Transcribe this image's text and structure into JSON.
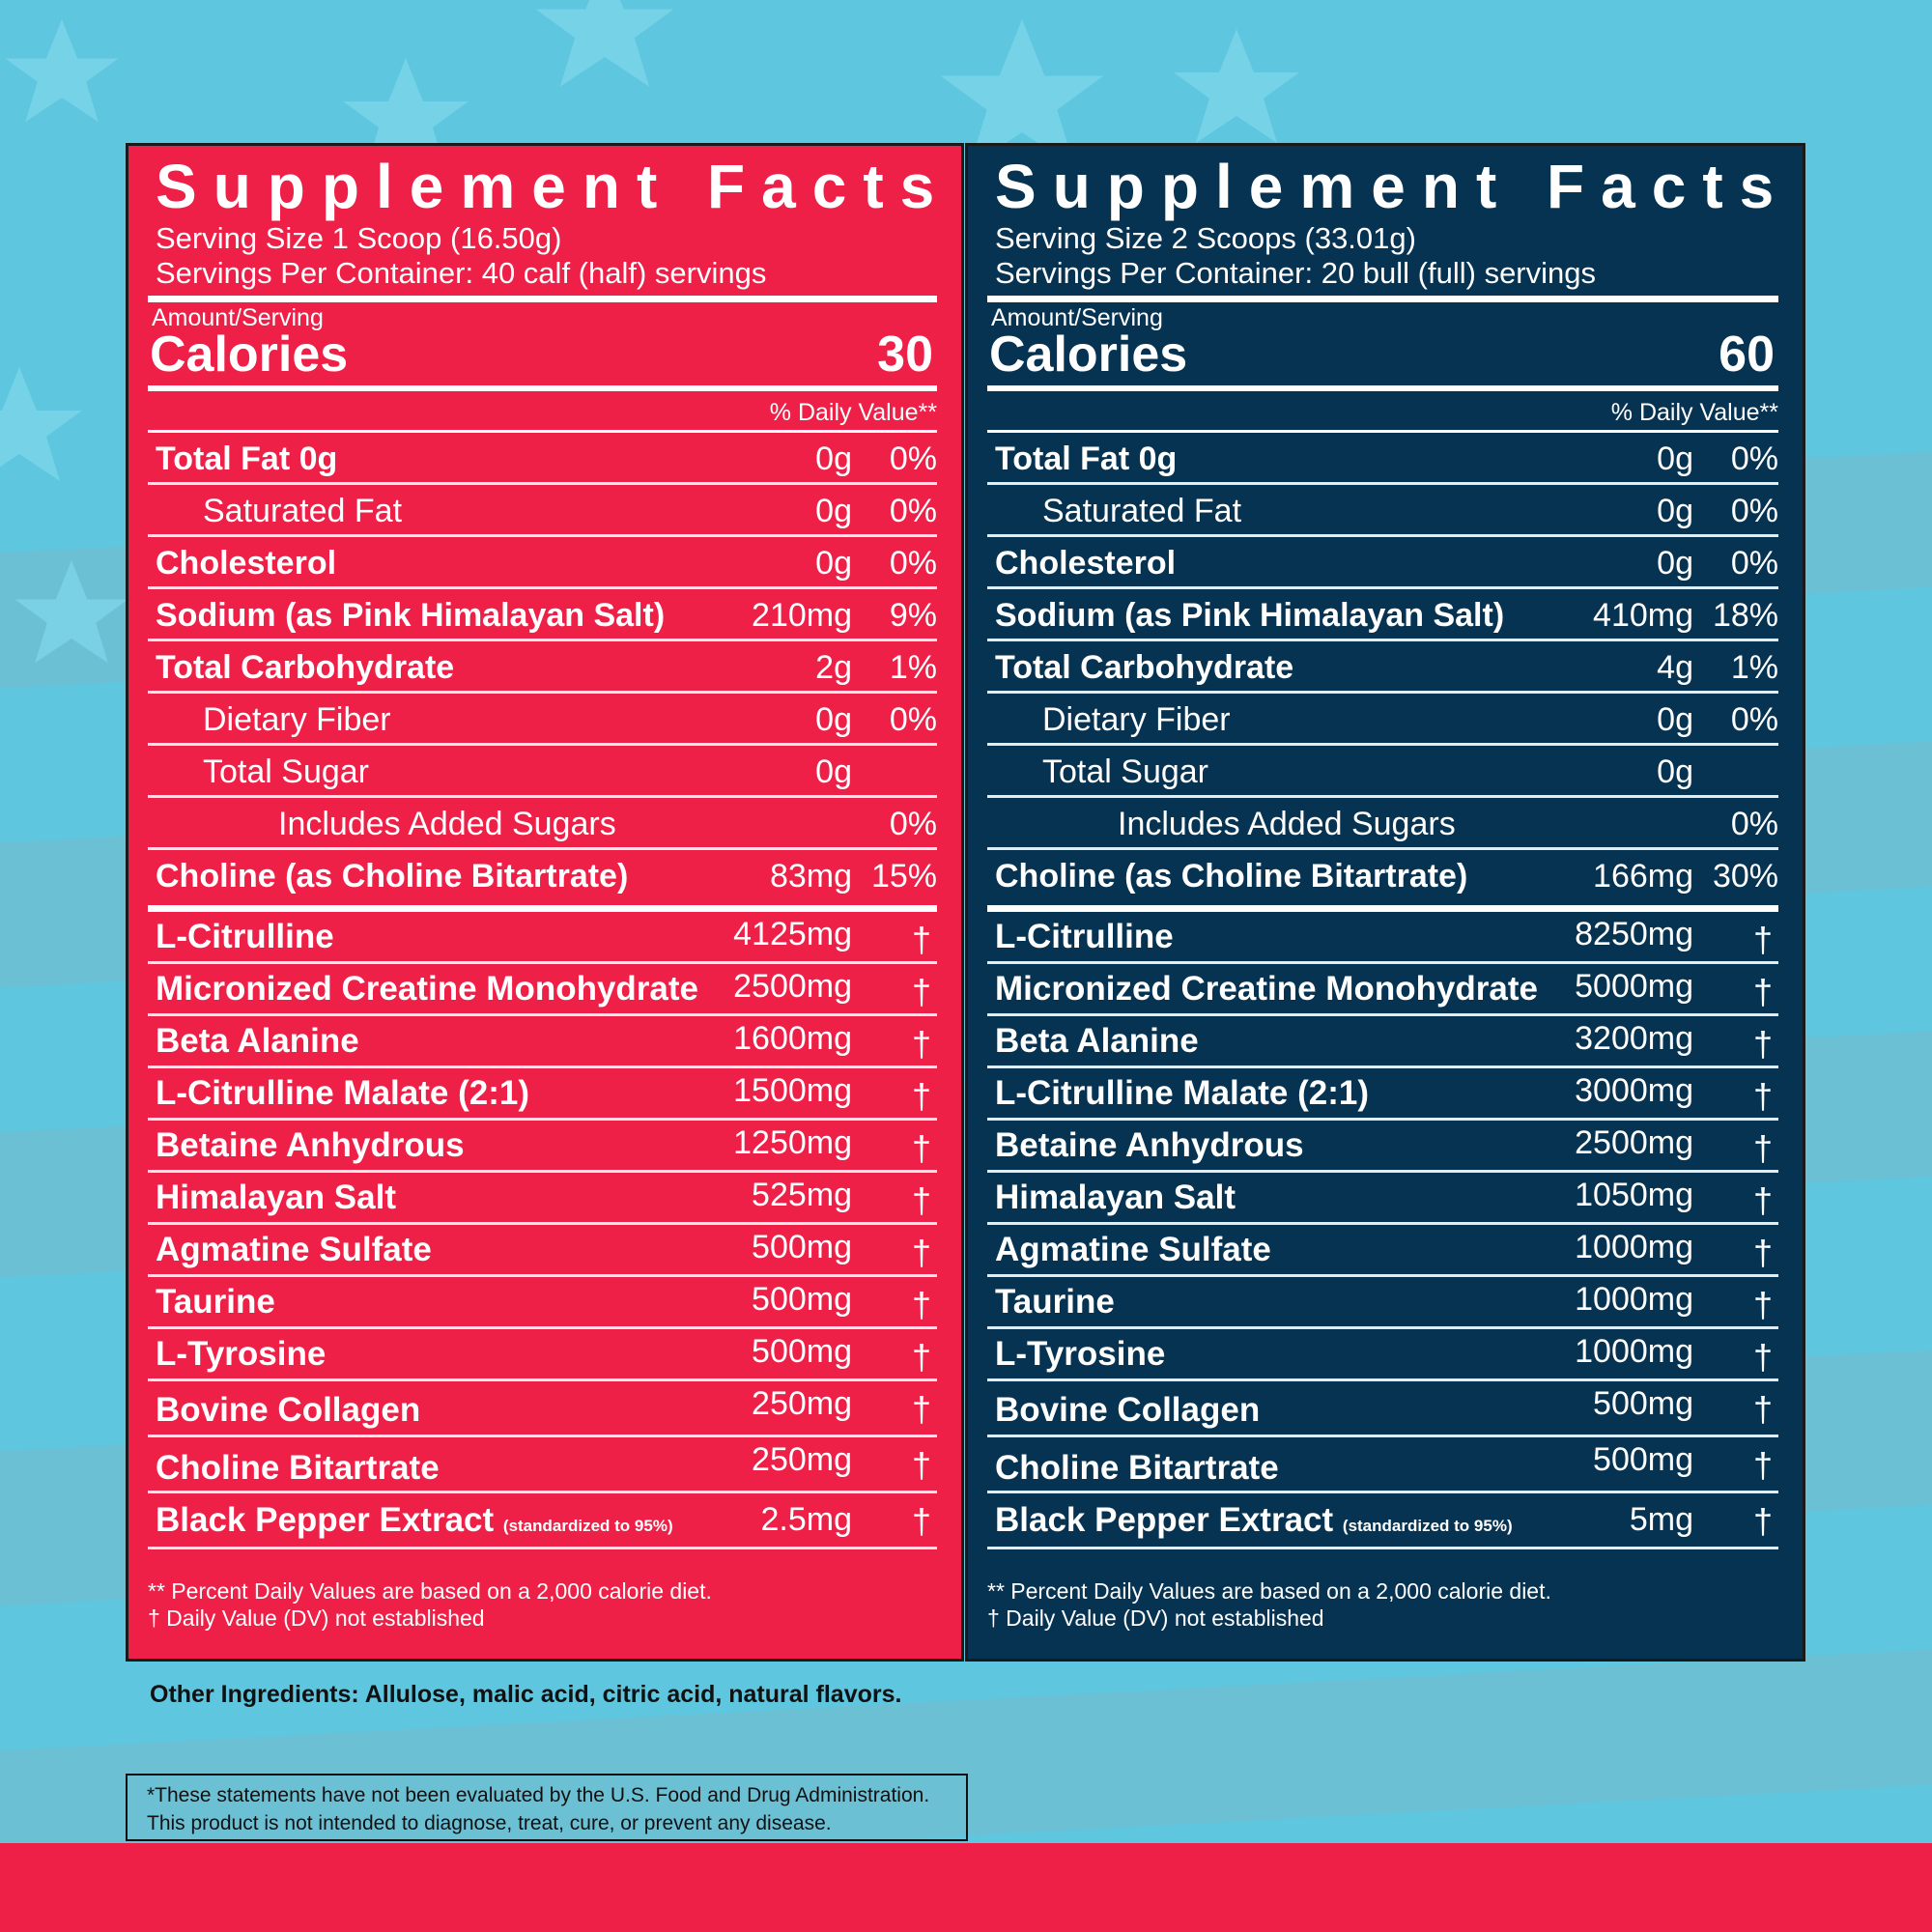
{
  "colors": {
    "red": "#ee2047",
    "navy": "#063352",
    "sky": "#5ec6df"
  },
  "panels": [
    {
      "title": "Supplement Facts",
      "serving_size": "Serving Size 1 Scoop (16.50g)",
      "servings_per": "Servings Per Container: 40 calf (half) servings",
      "amount_label": "Amount/Serving",
      "calories_label": "Calories",
      "calories_value": "30",
      "dv_header": "% Daily Value**",
      "nutrients": [
        {
          "name": "Total Fat 0g",
          "amount": "0g",
          "dv": "0%"
        },
        {
          "name": "Saturated Fat",
          "amount": "0g",
          "dv": "0%"
        },
        {
          "name": "Cholesterol",
          "amount": "0g",
          "dv": "0%"
        },
        {
          "name": "Sodium (as Pink Himalayan Salt)",
          "amount": "210mg",
          "dv": "9%"
        },
        {
          "name": "Total Carbohydrate",
          "amount": "2g",
          "dv": "1%"
        },
        {
          "name": "Dietary Fiber",
          "amount": "0g",
          "dv": "0%"
        },
        {
          "name": "Total Sugar",
          "amount": "0g",
          "dv": ""
        },
        {
          "name": "Includes Added Sugars",
          "amount": "",
          "dv": "0%"
        },
        {
          "name": "Choline (as Choline Bitartrate)",
          "amount": "83mg",
          "dv": "15%"
        }
      ],
      "ingredients": [
        {
          "name": "L-Citrulline",
          "amount": "4125mg",
          "dv": "†"
        },
        {
          "name": "Micronized Creatine Monohydrate",
          "amount": "2500mg",
          "dv": "†"
        },
        {
          "name": "Beta Alanine",
          "amount": "1600mg",
          "dv": "†"
        },
        {
          "name": "L-Citrulline Malate (2:1)",
          "amount": "1500mg",
          "dv": "†"
        },
        {
          "name": "Betaine Anhydrous",
          "amount": "1250mg",
          "dv": "†"
        },
        {
          "name": "Himalayan Salt",
          "amount": "525mg",
          "dv": "†"
        },
        {
          "name": "Agmatine Sulfate",
          "amount": "500mg",
          "dv": "†"
        },
        {
          "name": "Taurine",
          "amount": "500mg",
          "dv": "†"
        },
        {
          "name": "L-Tyrosine",
          "amount": "500mg",
          "dv": "†"
        },
        {
          "name": "Bovine Collagen",
          "amount": "250mg",
          "dv": "†"
        },
        {
          "name": "Choline Bitartrate",
          "amount": "250mg",
          "dv": "†"
        },
        {
          "name": "Black Pepper Extract",
          "note": "(standardized to 95%)",
          "amount": "2.5mg",
          "dv": "†"
        }
      ],
      "footnote1": "** Percent Daily Values are based on a 2,000 calorie diet.",
      "footnote2": "† Daily Value (DV) not established"
    },
    {
      "title": "Supplement Facts",
      "serving_size": "Serving Size 2 Scoops (33.01g)",
      "servings_per": "Servings Per Container: 20 bull (full) servings",
      "amount_label": "Amount/Serving",
      "calories_label": "Calories",
      "calories_value": "60",
      "dv_header": "% Daily Value**",
      "nutrients": [
        {
          "name": "Total Fat 0g",
          "amount": "0g",
          "dv": "0%"
        },
        {
          "name": "Saturated Fat",
          "amount": "0g",
          "dv": "0%"
        },
        {
          "name": "Cholesterol",
          "amount": "0g",
          "dv": "0%"
        },
        {
          "name": "Sodium (as Pink Himalayan Salt)",
          "amount": "410mg",
          "dv": "18%"
        },
        {
          "name": "Total Carbohydrate",
          "amount": "4g",
          "dv": "1%"
        },
        {
          "name": "Dietary Fiber",
          "amount": "0g",
          "dv": "0%"
        },
        {
          "name": "Total Sugar",
          "amount": "0g",
          "dv": ""
        },
        {
          "name": "Includes Added Sugars",
          "amount": "",
          "dv": "0%"
        },
        {
          "name": "Choline (as Choline Bitartrate)",
          "amount": "166mg",
          "dv": "30%"
        }
      ],
      "ingredients": [
        {
          "name": "L-Citrulline",
          "amount": "8250mg",
          "dv": "†"
        },
        {
          "name": "Micronized Creatine Monohydrate",
          "amount": "5000mg",
          "dv": "†"
        },
        {
          "name": "Beta Alanine",
          "amount": "3200mg",
          "dv": "†"
        },
        {
          "name": "L-Citrulline Malate (2:1)",
          "amount": "3000mg",
          "dv": "†"
        },
        {
          "name": "Betaine Anhydrous",
          "amount": "2500mg",
          "dv": "†"
        },
        {
          "name": "Himalayan Salt",
          "amount": "1050mg",
          "dv": "†"
        },
        {
          "name": "Agmatine Sulfate",
          "amount": "1000mg",
          "dv": "†"
        },
        {
          "name": "Taurine",
          "amount": "1000mg",
          "dv": "†"
        },
        {
          "name": "L-Tyrosine",
          "amount": "1000mg",
          "dv": "†"
        },
        {
          "name": "Bovine Collagen",
          "amount": "500mg",
          "dv": "†"
        },
        {
          "name": "Choline Bitartrate",
          "amount": "500mg",
          "dv": "†"
        },
        {
          "name": "Black Pepper Extract",
          "note": "(standardized to 95%)",
          "amount": "5mg",
          "dv": "†"
        }
      ],
      "footnote1": "** Percent Daily Values are based on a 2,000 calorie diet.",
      "footnote2": "† Daily Value (DV) not established"
    }
  ],
  "other_ingredients": "Other Ingredients: Allulose, malic acid, citric acid, natural flavors.",
  "disclaimer_line1": "*These statements have not been evaluated by the U.S. Food and Drug Administration.",
  "disclaimer_line2": "This product is not intended to diagnose, treat, cure, or prevent any disease."
}
